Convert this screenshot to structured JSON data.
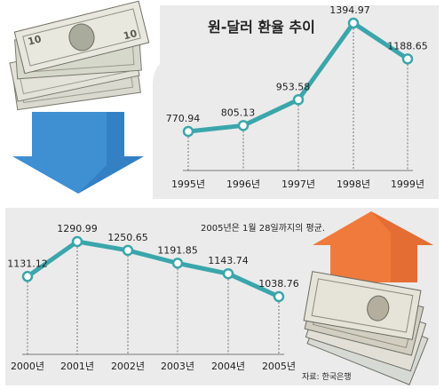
{
  "colors": {
    "line": "#3aa6ab",
    "point_fill": "#ffffff",
    "panel_bg": "#ebebeb",
    "text": "#222222",
    "down_arrow": "#3f8fd3",
    "up_arrow": "#ef7a3c"
  },
  "illustrations": {
    "top_left": "stacked-us-dollar-bills",
    "bottom_right": "stacked-korean-won-bills"
  },
  "chart_data": [
    {
      "type": "line",
      "title": "원-달러 환율 추이",
      "x": [
        "1995년",
        "1996년",
        "1997년",
        "1998년",
        "1999년"
      ],
      "series": [
        {
          "values": [
            770.94,
            805.13,
            953.58,
            1394.97,
            1188.65
          ]
        }
      ],
      "data_labels": [
        "770.94",
        "805.13",
        "953.58",
        "1394.97",
        "1188.65"
      ],
      "ylim": [
        700,
        1450
      ],
      "grid": false
    },
    {
      "type": "line",
      "x": [
        "2000년",
        "2001년",
        "2002년",
        "2003년",
        "2004년",
        "2005년"
      ],
      "series": [
        {
          "values": [
            1131.12,
            1290.99,
            1250.65,
            1191.85,
            1143.74,
            1038.76
          ]
        }
      ],
      "data_labels": [
        "1131.12",
        "1290.99",
        "1250.65",
        "1191.85",
        "1143.74",
        "1038.76"
      ],
      "ylim": [
        900,
        1400
      ],
      "grid": false
    }
  ],
  "note": "2005년은 1월 28일까지의 평균.",
  "source": "자료: 한국은행"
}
